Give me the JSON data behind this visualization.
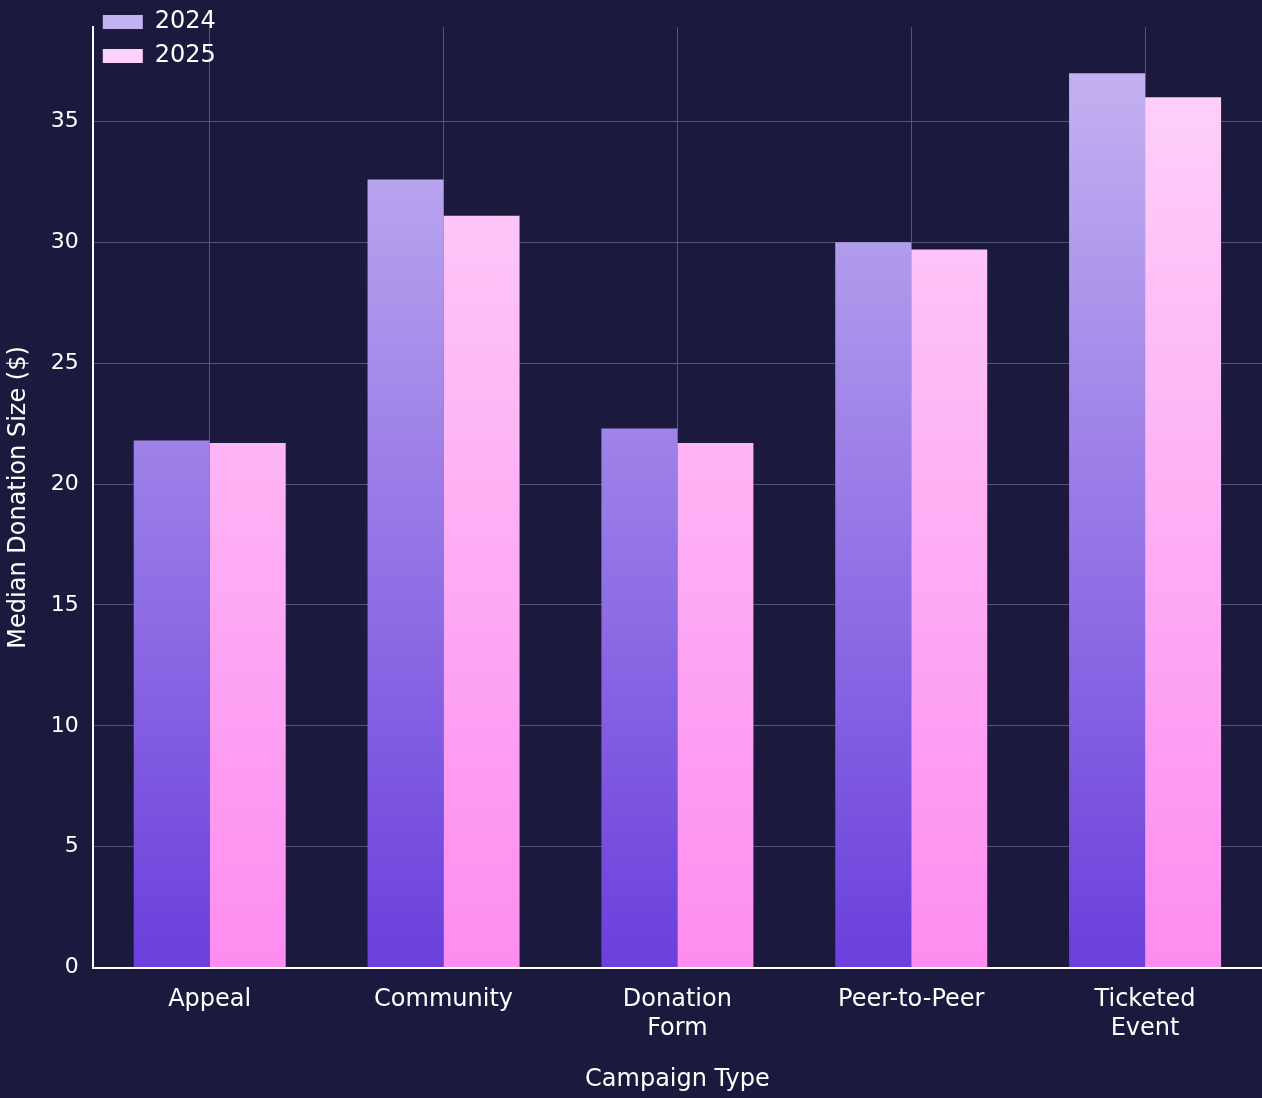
{
  "chart_data": {
    "type": "bar",
    "xlabel": "Campaign Type",
    "ylabel": "Median Donation Size ($)",
    "categories": [
      "Appeal",
      "Community",
      "Donation Form",
      "Peer-to-Peer",
      "Ticketed Event"
    ],
    "series": [
      {
        "name": "2024",
        "color": "#6a3fdc",
        "values": [
          21.8,
          32.6,
          22.3,
          30.0,
          37.0
        ]
      },
      {
        "name": "2025",
        "color": "#fd8df0",
        "values": [
          21.7,
          31.1,
          21.7,
          29.7,
          36.0
        ]
      }
    ],
    "ylim": [
      0,
      38.9
    ],
    "yticks": [
      0,
      5,
      10,
      15,
      20,
      25,
      30,
      35
    ],
    "grid": true,
    "legend": "top left"
  }
}
